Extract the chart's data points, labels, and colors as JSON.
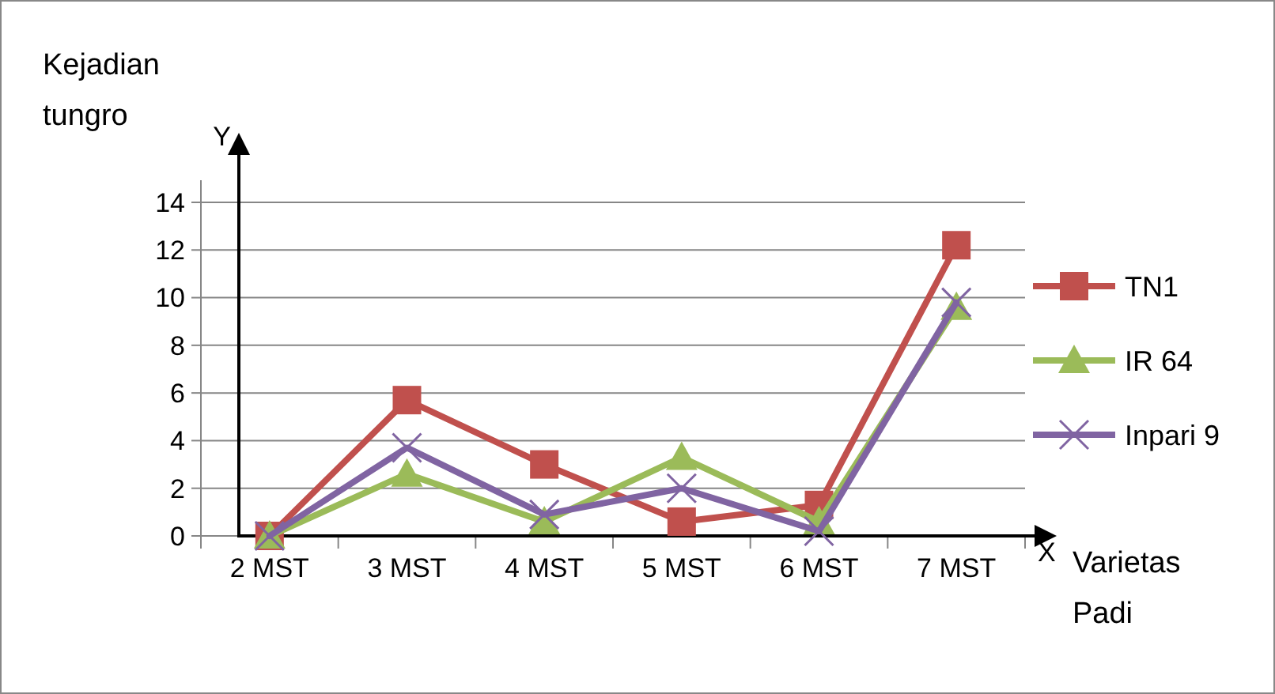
{
  "chart_data": {
    "type": "line",
    "ylabel": "Kejadian tungro",
    "xlabel": "Varietas Padi",
    "categories": [
      "2 MST",
      "3 MST",
      "4 MST",
      "5 MST",
      "6 MST",
      "7 MST"
    ],
    "series": [
      {
        "name": "TN1",
        "color": "#c0504d",
        "marker": "square",
        "values": [
          0,
          5.7,
          3.0,
          0.6,
          1.3,
          12.2
        ]
      },
      {
        "name": "IR 64",
        "color": "#9bbb59",
        "marker": "triangle",
        "values": [
          0,
          2.6,
          0.6,
          3.3,
          0.6,
          9.6
        ]
      },
      {
        "name": "Inpari 9",
        "color": "#8064a2",
        "marker": "cross",
        "values": [
          0,
          3.7,
          0.9,
          2.0,
          0.2,
          9.8
        ]
      }
    ],
    "ylim": [
      0,
      14
    ],
    "yticks": [
      0,
      2,
      4,
      6,
      8,
      10,
      12,
      14
    ],
    "grid": "y",
    "legend": "right",
    "annotations": [
      "Y",
      "X"
    ]
  }
}
